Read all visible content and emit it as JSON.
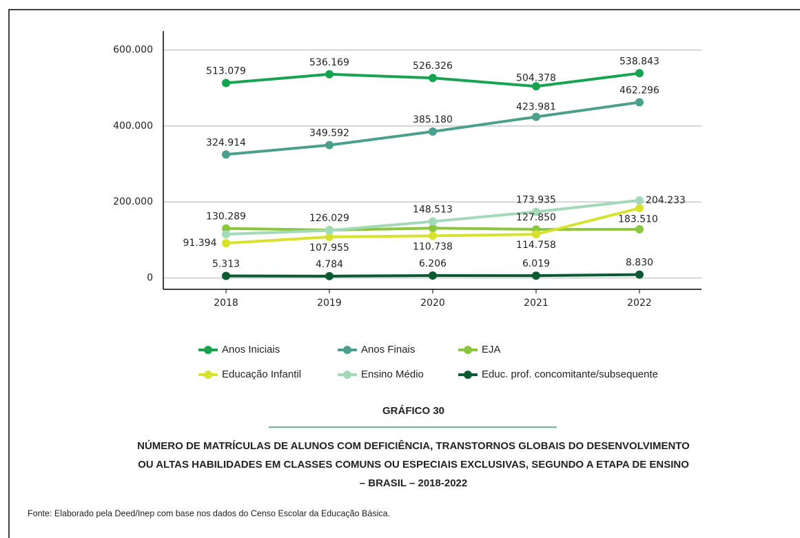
{
  "chart_data": {
    "type": "line",
    "categories": [
      "2018",
      "2019",
      "2020",
      "2021",
      "2022"
    ],
    "series": [
      {
        "name": "Anos Iniciais",
        "color": "#17a34f",
        "values": [
          513079,
          536169,
          526326,
          504378,
          538843
        ],
        "value_labels": [
          "513.079",
          "536.169",
          "526.326",
          "504.378",
          "538.843"
        ]
      },
      {
        "name": "Anos Finais",
        "color": "#4c9f8b",
        "values": [
          324914,
          349592,
          385180,
          423981,
          462296
        ],
        "value_labels": [
          "324.914",
          "349.592",
          "385.180",
          "423.981",
          "462.296"
        ]
      },
      {
        "name": "EJA",
        "color": "#8cc63f",
        "values": [
          130289,
          126029,
          131000,
          127850,
          128000
        ],
        "value_labels": [
          "130.289",
          "126.029",
          null,
          "127.850",
          null
        ]
      },
      {
        "name": "Educação Infantil",
        "color": "#d6e22b",
        "values": [
          91394,
          107955,
          110738,
          114758,
          183510
        ],
        "value_labels": [
          "91.394",
          "107.955",
          "110.738",
          "114.758",
          "183.510"
        ]
      },
      {
        "name": "Ensino Médio",
        "color": "#a3d9b8",
        "values": [
          115000,
          125000,
          148513,
          173935,
          204233
        ],
        "value_labels": [
          null,
          null,
          "148.513",
          "173.935",
          "204.233"
        ]
      },
      {
        "name": "Educ. prof. concomitante/subsequente",
        "color": "#0b5a32",
        "values": [
          5313,
          4784,
          6206,
          6019,
          8830
        ],
        "value_labels": [
          "5.313",
          "4.784",
          "6.206",
          "6.019",
          "8.830"
        ]
      }
    ],
    "ylim": [
      -30000,
      650000
    ],
    "yticks": [
      0,
      {
        "value": 200000,
        "label": "200.000"
      },
      {
        "value": 400000,
        "label": "400.000"
      },
      {
        "value": 600000,
        "label": "600.000"
      }
    ],
    "grid": true,
    "figure_label": "GRÁFICO 30",
    "title": [
      "NÚMERO DE MATRÍCULAS DE ALUNOS COM DEFICIÊNCIA, TRANSTORNOS GLOBAIS DO DESENVOLVIMENTO",
      "OU ALTAS HABILIDADES EM CLASSES COMUNS OU ESPECIAIS EXCLUSIVAS, SEGUNDO A ETAPA DE ENSINO",
      "– BRASIL – 2018-2022"
    ],
    "source": "Fonte: Elaborado pela Deed/Inep com base nos dados do Censo Escolar da Educação Básica."
  }
}
